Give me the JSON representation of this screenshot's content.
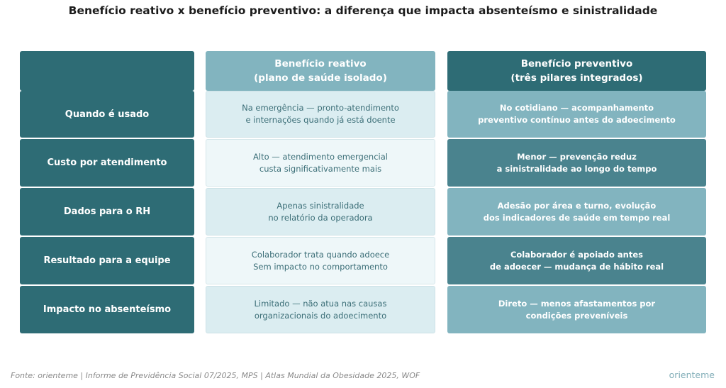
{
  "title": "Benefício reativo x benefício preventivo: a diferença que impacta absenteísmo e sinistralidade",
  "headers": {
    "reactive": [
      "Benefício reativo",
      "(plano de saúde isolado)"
    ],
    "preventive": [
      "Benefício preventivo",
      "(três pilares integrados)"
    ]
  },
  "rows": [
    {
      "label": "Quando é usado",
      "reactive": [
        "Na emergência — pronto-atendimento",
        "e internações quando já está doente"
      ],
      "preventive": [
        "No cotidiano — acompanhamento",
        "preventivo contínuo antes do adoecimento"
      ]
    },
    {
      "label": "Custo por atendimento",
      "reactive": [
        "Alto — atendimento emergencial",
        "custa significativamente mais"
      ],
      "preventive": [
        "Menor — prevenção reduz",
        "a sinistralidade ao longo do tempo"
      ]
    },
    {
      "label": "Dados para o RH",
      "reactive": [
        "Apenas sinistralidade",
        "no relatório da operadora"
      ],
      "preventive": [
        "Adesão por área e turno, evolução",
        "dos indicadores de saúde em tempo real"
      ]
    },
    {
      "label": "Resultado para a equipe",
      "reactive": [
        "Colaborador trata quando adoece",
        "Sem impacto no comportamento"
      ],
      "preventive": [
        "Colaborador é apoiado antes",
        "de adoecer — mudança de hábito real"
      ]
    },
    {
      "label": "Impacto no absenteísmo",
      "reactive": [
        "Limitado — não atua nas causas",
        "organizacionais do adoecimento"
      ],
      "preventive": [
        "Direto — menos afastamentos por",
        "condições preveníveis"
      ]
    }
  ],
  "footer": "Fonte: orienteme | Informe de Previdência Social 07/2025, MPS | Atlas Mundial da Obesidade 2025, WOF",
  "brand": "orienteme",
  "colors": {
    "dark_teal": "#2e6c75",
    "mid_teal": "#4a838e",
    "light_teal": "#82b4bf",
    "pale_a": "#dbedf1",
    "pale_b": "#eef7f9"
  }
}
